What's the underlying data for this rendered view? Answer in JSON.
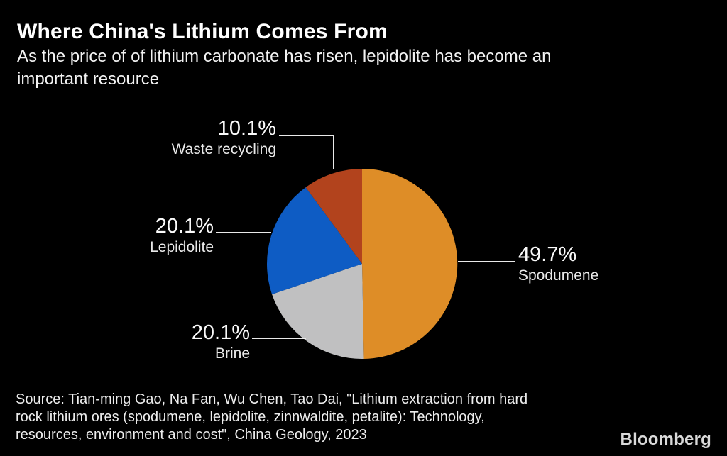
{
  "header": {
    "title": "Where China's Lithium Comes From",
    "subtitle_line1": "As the price of of lithium carbonate has risen, lepidolite has become an",
    "subtitle_line2": "important resource"
  },
  "chart_data": {
    "type": "pie",
    "title": "Where China's Lithium Comes From",
    "unit": "%",
    "start_angle_deg": 0,
    "direction": "clockwise",
    "legend_position": "callout-labels",
    "slices": [
      {
        "name": "Spodumene",
        "value": 49.7,
        "pct_label": "49.7%",
        "color": "#DE8D27"
      },
      {
        "name": "Brine",
        "value": 20.1,
        "pct_label": "20.1%",
        "color": "#C0C0C1"
      },
      {
        "name": "Lepidolite",
        "value": 20.1,
        "pct_label": "20.1%",
        "color": "#0E5CC4"
      },
      {
        "name": "Waste recycling",
        "value": 10.1,
        "pct_label": "10.1%",
        "color": "#B2431D"
      }
    ]
  },
  "footer": {
    "source_line1": "Source: Tian-ming Gao, Na Fan, Wu Chen, Tao Dai, \"Lithium extraction from hard",
    "source_line2": "rock lithium ores (spodumene, lepidolite, zinnwaldite, petalite): Technology,",
    "source_line3": "resources, environment and cost\", China Geology, 2023",
    "brand": "Bloomberg"
  },
  "colors": {
    "background": "#000000",
    "title_text": "#FFFFFF",
    "callout_line": "#E9E9E9"
  }
}
